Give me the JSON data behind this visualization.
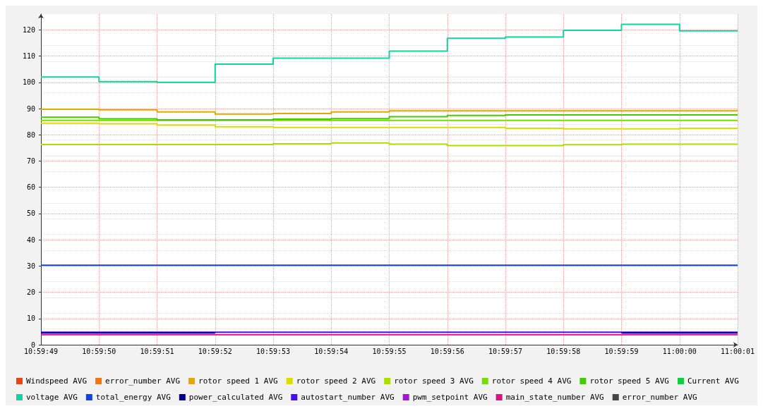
{
  "chart_data": {
    "type": "step",
    "categories": [
      "10:59:49",
      "10:59:50",
      "10:59:51",
      "10:59:52",
      "10:59:53",
      "10:59:54",
      "10:59:55",
      "10:59:56",
      "10:59:57",
      "10:59:58",
      "10:59:59",
      "11:00:00",
      "11:00:01"
    ],
    "ylim": [
      0,
      126
    ],
    "yticks": [
      0,
      10,
      20,
      30,
      40,
      50,
      60,
      70,
      80,
      90,
      100,
      110,
      120
    ],
    "grid": true,
    "legend": "bottom",
    "series": [
      {
        "name": "Windspeed AVG",
        "color": "#ea4410",
        "values": [
          null,
          null,
          null,
          null,
          null,
          null,
          null,
          null,
          null,
          null,
          null,
          null,
          null
        ]
      },
      {
        "name": "error_number AVG",
        "color": "#ee7711",
        "values": [
          null,
          null,
          null,
          null,
          null,
          null,
          null,
          null,
          null,
          null,
          null,
          null,
          null
        ]
      },
      {
        "name": "rotor speed 1 AVG",
        "color": "#e0a800",
        "values": [
          89.7,
          89.5,
          88.7,
          87.9,
          88.1,
          88.7,
          89.1,
          89.1,
          89.1,
          89.1,
          89.1,
          89.1,
          89.1
        ]
      },
      {
        "name": "rotor speed 2 AVG",
        "color": "#dddd00",
        "values": [
          84.4,
          84.2,
          83.7,
          83.1,
          82.8,
          82.8,
          82.8,
          82.8,
          82.5,
          82.3,
          82.3,
          82.5,
          82.5
        ]
      },
      {
        "name": "rotor speed 3 AVG",
        "color": "#aadd00",
        "values": [
          76.3,
          76.3,
          76.3,
          76.3,
          76.6,
          76.9,
          76.4,
          75.9,
          75.9,
          76.2,
          76.4,
          76.4,
          76.4
        ]
      },
      {
        "name": "rotor speed 4 AVG",
        "color": "#77dd00",
        "values": [
          85.5,
          85.5,
          85.5,
          85.5,
          85.5,
          85.5,
          85.5,
          85.5,
          85.5,
          85.5,
          85.5,
          85.5,
          85.5
        ]
      },
      {
        "name": "rotor speed 5 AVG",
        "color": "#44cc00",
        "values": [
          86.7,
          86.1,
          85.7,
          85.7,
          86.0,
          86.2,
          86.9,
          87.4,
          87.6,
          87.6,
          87.6,
          87.6,
          87.6
        ]
      },
      {
        "name": "Current AVG",
        "color": "#11cc44",
        "values": [
          null,
          null,
          null,
          null,
          null,
          null,
          null,
          null,
          null,
          null,
          null,
          null,
          null
        ]
      },
      {
        "name": "voltage AVG",
        "color": "#11d4a0",
        "values": [
          102,
          100.3,
          100,
          106.9,
          109.2,
          109.2,
          111.9,
          116.8,
          117.3,
          119.8,
          122.1,
          119.6,
          119.6
        ]
      },
      {
        "name": "total_energy AVG",
        "color": "#1144dd",
        "values": [
          30.3,
          30.3,
          30.3,
          30.3,
          30.3,
          30.3,
          30.3,
          30.3,
          30.3,
          30.3,
          30.3,
          30.3,
          30.3
        ]
      },
      {
        "name": "power_calculated AVG",
        "color": "#00008e",
        "values": [
          4.5,
          4.5,
          4.5,
          null,
          null,
          null,
          null,
          null,
          null,
          null,
          4.5,
          4.5,
          4.5
        ]
      },
      {
        "name": "autostart_number AVG",
        "color": "#4411ee",
        "values": [
          4.8,
          4.8,
          4.8,
          4.8,
          4.8,
          4.8,
          4.8,
          4.8,
          4.8,
          4.8,
          4.8,
          4.8,
          4.8
        ]
      },
      {
        "name": "pwm_setpoint AVG",
        "color": "#aa11dd",
        "values": [
          null,
          null,
          null,
          null,
          null,
          null,
          null,
          null,
          null,
          null,
          null,
          null,
          null
        ]
      },
      {
        "name": "main_state_number AVG",
        "color": "#dd1188",
        "values": [
          3.8,
          3.8,
          3.8,
          3.8,
          3.8,
          3.8,
          3.8,
          3.8,
          3.8,
          3.8,
          3.8,
          3.8,
          3.8
        ]
      },
      {
        "name": "error_number AVG",
        "color": "#444444",
        "values": [
          null,
          null,
          null,
          null,
          null,
          null,
          null,
          null,
          null,
          null,
          null,
          null,
          null
        ]
      }
    ]
  }
}
